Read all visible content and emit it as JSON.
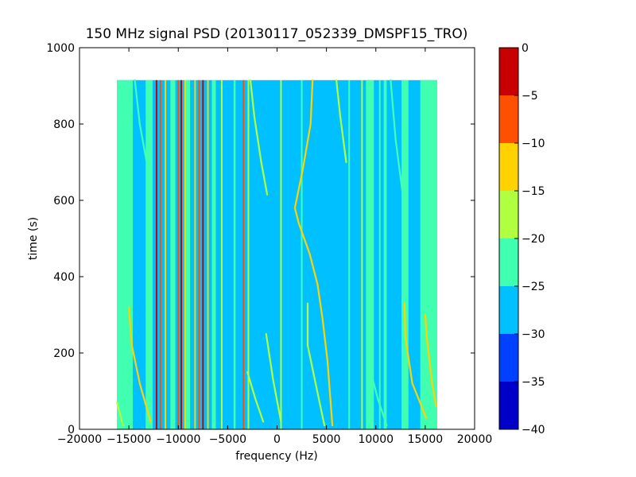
{
  "chart_data": {
    "type": "heatmap",
    "title": "150 MHz signal PSD (20130117_052339_DMSPF15_TRO)",
    "xlabel": "frequency (Hz)",
    "ylabel": "time (s)",
    "xlim": [
      -20000,
      20000
    ],
    "ylim": [
      0,
      1000
    ],
    "x_ticks": [
      -20000,
      -15000,
      -10000,
      -5000,
      0,
      5000,
      10000,
      15000,
      20000
    ],
    "y_ticks": [
      0,
      200,
      400,
      600,
      800,
      1000
    ],
    "x_tick_labels": [
      "−20000",
      "−15000",
      "−10000",
      "−5000",
      "0",
      "5000",
      "10000",
      "15000",
      "20000"
    ],
    "y_tick_labels": [
      "0",
      "200",
      "400",
      "600",
      "800",
      "1000"
    ],
    "data_extent": {
      "x": [
        -16200,
        16200
      ],
      "y": [
        0,
        915
      ]
    },
    "background_level": -27.5,
    "colorbar": {
      "levels": [
        -40,
        -35,
        -30,
        -25,
        -20,
        -15,
        -10,
        -5,
        0
      ],
      "tick_labels": [
        "−40",
        "−35",
        "−30",
        "−25",
        "−20",
        "−15",
        "−10",
        "−5",
        "0"
      ],
      "colors": [
        "#0000c8",
        "#0040ff",
        "#00c0ff",
        "#40ffb0",
        "#b0ff40",
        "#ffd200",
        "#ff5000",
        "#c80000"
      ]
    },
    "bands": [
      {
        "x0": -16200,
        "x1": -14600,
        "level": -22.5
      },
      {
        "x0": -13300,
        "x1": -12600,
        "level": -22.5
      },
      {
        "x0": -10800,
        "x1": -10300,
        "level": -22.5
      },
      {
        "x0": -9400,
        "x1": -8800,
        "level": -22.5
      },
      {
        "x0": -6600,
        "x1": -6200,
        "level": -22.5
      },
      {
        "x0": -4400,
        "x1": -4200,
        "level": -22.5
      },
      {
        "x0": 9000,
        "x1": 9800,
        "level": -22.5
      },
      {
        "x0": 10800,
        "x1": 11100,
        "level": -22.5
      },
      {
        "x0": 12600,
        "x1": 13300,
        "level": -22.5
      },
      {
        "x0": 14500,
        "x1": 16200,
        "level": -22.5
      }
    ],
    "lines": [
      {
        "x": -12200,
        "level": -2.5
      },
      {
        "x": -11800,
        "level": -7.5
      },
      {
        "x": -11300,
        "level": -12.5
      },
      {
        "x": -10000,
        "level": -7.5
      },
      {
        "x": -9700,
        "level": -2.5
      },
      {
        "x": -9300,
        "level": -12.5
      },
      {
        "x": -8300,
        "level": -12.5
      },
      {
        "x": -7900,
        "level": -7.5
      },
      {
        "x": -7500,
        "level": -2.5
      },
      {
        "x": -7000,
        "level": -12.5
      },
      {
        "x": -5600,
        "level": -17.5
      },
      {
        "x": -3400,
        "level": -7.5
      },
      {
        "x": -2900,
        "level": -17.5
      },
      {
        "x": 400,
        "level": -17.5
      },
      {
        "x": 2500,
        "level": -22.5
      },
      {
        "x": 7300,
        "level": -22.5
      },
      {
        "x": 8600,
        "level": -17.5
      },
      {
        "x": 9300,
        "level": -22.5
      },
      {
        "x": 10400,
        "level": -22.5
      }
    ],
    "traces": [
      {
        "level": -12.5,
        "points": [
          [
            3600,
            915
          ],
          [
            3400,
            800
          ],
          [
            2600,
            680
          ],
          [
            1800,
            580
          ],
          [
            2200,
            540
          ],
          [
            3300,
            460
          ],
          [
            4100,
            380
          ],
          [
            4600,
            290
          ],
          [
            5100,
            180
          ],
          [
            5600,
            10
          ]
        ]
      },
      {
        "level": -17.5,
        "points": [
          [
            3100,
            330
          ],
          [
            3100,
            220
          ],
          [
            3900,
            120
          ],
          [
            4800,
            10
          ]
        ]
      },
      {
        "level": -12.5,
        "points": [
          [
            -15000,
            320
          ],
          [
            -14700,
            220
          ],
          [
            -13900,
            120
          ],
          [
            -12800,
            20
          ]
        ]
      },
      {
        "level": -12.5,
        "points": [
          [
            12900,
            330
          ],
          [
            13000,
            240
          ],
          [
            13700,
            120
          ],
          [
            15100,
            30
          ]
        ]
      },
      {
        "level": -12.5,
        "points": [
          [
            15000,
            300
          ],
          [
            15200,
            230
          ],
          [
            15700,
            120
          ],
          [
            16100,
            60
          ]
        ]
      },
      {
        "level": -17.5,
        "points": [
          [
            -16200,
            70
          ],
          [
            -15600,
            10
          ]
        ]
      },
      {
        "level": -17.5,
        "points": [
          [
            -2700,
            915
          ],
          [
            -2300,
            820
          ],
          [
            -1600,
            700
          ],
          [
            -1000,
            615
          ]
        ]
      },
      {
        "level": -17.5,
        "points": [
          [
            -1100,
            250
          ],
          [
            -400,
            130
          ],
          [
            400,
            20
          ]
        ]
      },
      {
        "level": -17.5,
        "points": [
          [
            -3000,
            150
          ],
          [
            -2200,
            80
          ],
          [
            -1400,
            20
          ]
        ]
      },
      {
        "level": -17.5,
        "points": [
          [
            6000,
            915
          ],
          [
            6400,
            820
          ],
          [
            7000,
            700
          ]
        ]
      },
      {
        "level": -22.5,
        "points": [
          [
            -14400,
            915
          ],
          [
            -13900,
            800
          ],
          [
            -13200,
            700
          ]
        ]
      },
      {
        "level": -22.5,
        "points": [
          [
            11500,
            915
          ],
          [
            12000,
            760
          ],
          [
            12700,
            620
          ]
        ]
      },
      {
        "level": -22.5,
        "points": [
          [
            9500,
            150
          ],
          [
            10200,
            80
          ],
          [
            11100,
            10
          ]
        ]
      }
    ]
  }
}
